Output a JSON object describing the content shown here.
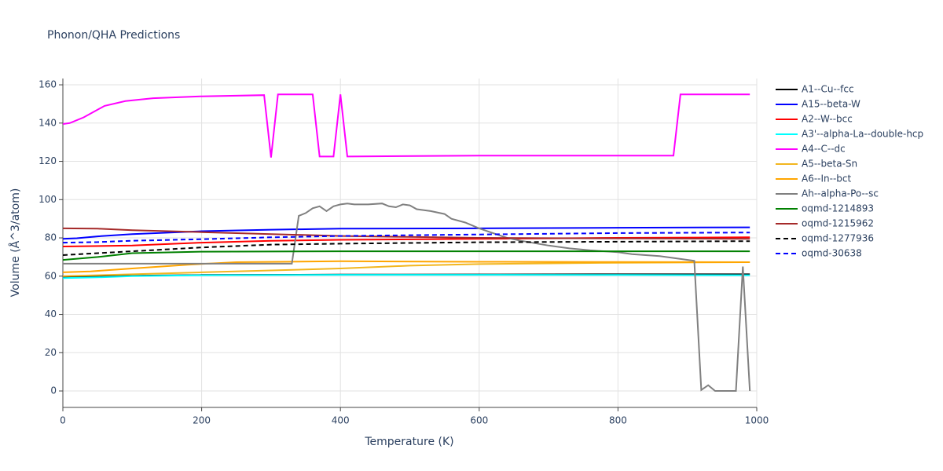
{
  "chart_data": {
    "type": "line",
    "title": "Phonon/QHA Predictions",
    "x_label": "Temperature (K)",
    "y_label": "Volume (Å^3/atom)",
    "xlim": [
      0,
      1000
    ],
    "ylim": [
      -8.6,
      163.3
    ],
    "xticks": [
      0,
      200,
      400,
      600,
      800,
      1000
    ],
    "yticks": [
      0,
      20,
      40,
      60,
      80,
      100,
      120,
      140,
      160
    ],
    "grid": true,
    "legend": "right",
    "series": [
      {
        "name": "A1--Cu--fcc",
        "color": "#000000",
        "dash": "solid",
        "x": [
          0,
          100,
          200,
          400,
          600,
          800,
          990
        ],
        "values": [
          59.5,
          60.2,
          60.6,
          60.8,
          60.9,
          61,
          61
        ]
      },
      {
        "name": "A15--beta-W",
        "color": "#0000ff",
        "dash": "solid",
        "x": [
          0,
          20,
          50,
          100,
          200,
          300,
          400,
          600,
          800,
          990
        ],
        "values": [
          79.5,
          79.8,
          80.8,
          82,
          83.5,
          84.3,
          84.8,
          85,
          85.3,
          85.5
        ]
      },
      {
        "name": "A2--W--bcc",
        "color": "#ff0000",
        "dash": "solid",
        "x": [
          0,
          100,
          200,
          300,
          400,
          600,
          800,
          990
        ],
        "values": [
          75.5,
          76,
          77.5,
          78.5,
          79,
          79.5,
          80,
          80.3
        ]
      },
      {
        "name": "A3'--alpha-La--double-hcp",
        "color": "#00ffff",
        "dash": "solid",
        "x": [
          0,
          50,
          100,
          200,
          400,
          600,
          800,
          990
        ],
        "values": [
          59,
          59.4,
          60,
          60.5,
          60.7,
          60.7,
          60.6,
          60.5
        ]
      },
      {
        "name": "A4--C--dc",
        "color": "#ff00ff",
        "dash": "solid",
        "x": [
          0,
          10,
          30,
          60,
          90,
          130,
          200,
          290,
          300,
          310,
          360,
          370,
          390,
          400,
          410,
          600,
          880,
          890,
          990
        ],
        "values": [
          139.5,
          140,
          143,
          149,
          151.5,
          153,
          154,
          154.6,
          122,
          155,
          155,
          122.5,
          122.5,
          155,
          122.5,
          123,
          123,
          155,
          155
        ]
      },
      {
        "name": "A5--beta-Sn",
        "color": "#f2b61f",
        "dash": "solid",
        "x": [
          0,
          100,
          200,
          300,
          400,
          500,
          600,
          800,
          990
        ],
        "values": [
          60,
          61,
          62,
          63,
          64,
          65.5,
          66.3,
          67,
          67.3
        ]
      },
      {
        "name": "A6--In--bct",
        "color": "#ffa500",
        "dash": "solid",
        "x": [
          0,
          40,
          100,
          180,
          250,
          400,
          600,
          800,
          990
        ],
        "values": [
          62,
          62.5,
          64,
          66,
          67.3,
          67.8,
          67.5,
          67.4,
          67.3
        ]
      },
      {
        "name": "Ah--alpha-Po--sc",
        "color": "#808080",
        "dash": "solid",
        "x": [
          0,
          330,
          340,
          350,
          360,
          370,
          380,
          390,
          400,
          410,
          420,
          440,
          460,
          470,
          480,
          490,
          500,
          510,
          530,
          550,
          560,
          580,
          600,
          640,
          660,
          700,
          730,
          760,
          800,
          820,
          860,
          880,
          910,
          920,
          930,
          940,
          970,
          980,
          990
        ],
        "values": [
          66.5,
          66.5,
          91.5,
          93,
          95.5,
          96.5,
          94,
          96.5,
          97.5,
          98,
          97.5,
          97.5,
          98,
          96.5,
          96,
          97.5,
          97,
          95,
          94,
          92.5,
          90,
          88,
          85,
          80,
          78.5,
          76,
          74.5,
          73.5,
          72.5,
          71.5,
          70.5,
          69.5,
          68,
          0.5,
          3,
          0,
          0,
          65,
          0
        ]
      },
      {
        "name": "oqmd-1214893",
        "color": "#008000",
        "dash": "solid",
        "x": [
          0,
          50,
          100,
          200,
          400,
          600,
          990
        ],
        "values": [
          68.5,
          70,
          72,
          72.8,
          73,
          73,
          73
        ]
      },
      {
        "name": "oqmd-1215962",
        "color": "#a52a2a",
        "dash": "solid",
        "x": [
          0,
          50,
          100,
          200,
          300,
          400,
          500,
          600,
          990
        ],
        "values": [
          85,
          84.8,
          84,
          83,
          82,
          81,
          80.5,
          80,
          79.5
        ]
      },
      {
        "name": "oqmd-1277936",
        "color": "#000000",
        "dash": "dash",
        "x": [
          0,
          50,
          100,
          200,
          300,
          400,
          600,
          800,
          990
        ],
        "values": [
          71,
          72,
          73,
          75,
          76.5,
          77,
          77.7,
          78,
          78.3
        ]
      },
      {
        "name": "oqmd-30638",
        "color": "#0000ff",
        "dash": "dash",
        "x": [
          0,
          50,
          100,
          200,
          300,
          400,
          600,
          800,
          990
        ],
        "values": [
          77.5,
          77.8,
          78.5,
          79.3,
          80.3,
          81,
          81.8,
          82.5,
          82.8
        ]
      }
    ]
  }
}
